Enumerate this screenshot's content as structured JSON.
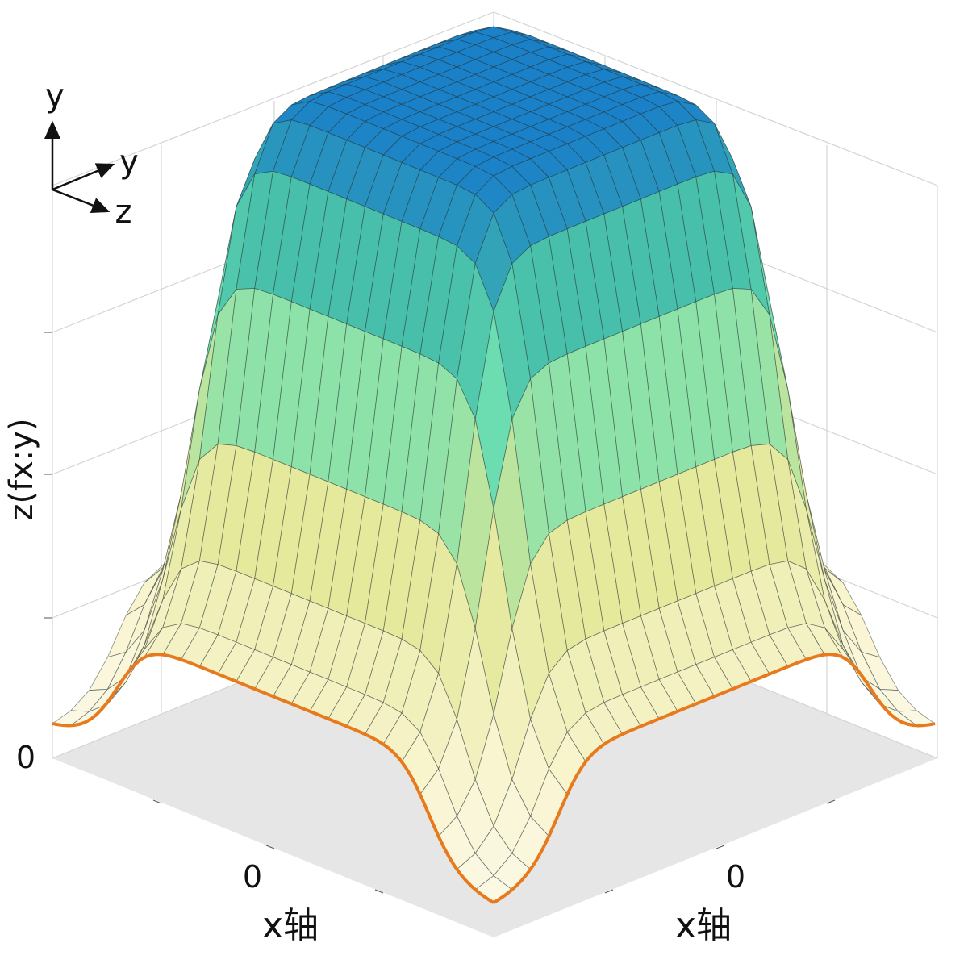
{
  "axis_triad": {
    "vertical": "y",
    "upper": "y",
    "lower": "z"
  },
  "z_axis": {
    "label": "z(fx:y)",
    "tick": 0
  },
  "x_axes": [
    {
      "tick": 0,
      "label": "x轴"
    },
    {
      "tick": 0,
      "label": "x轴"
    }
  ]
}
